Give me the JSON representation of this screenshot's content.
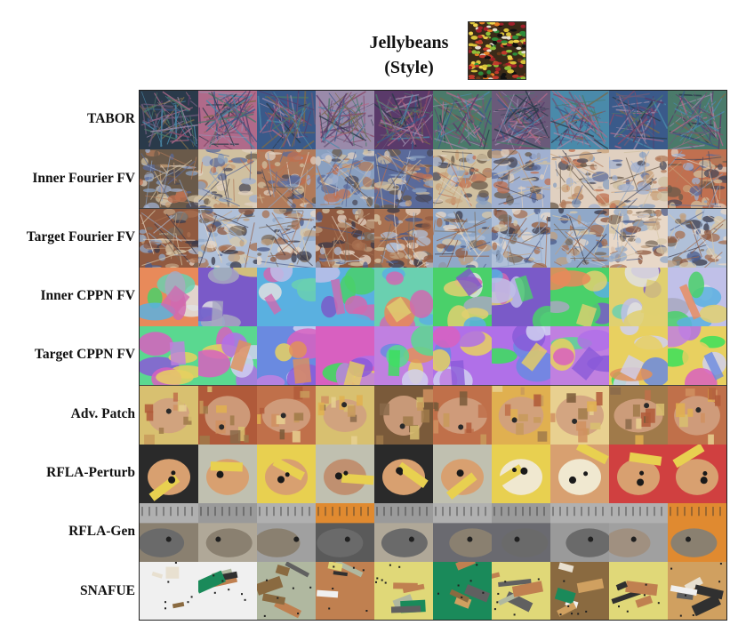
{
  "header": {
    "title_line1": "Jellybeans",
    "title_line2": "(Style)"
  },
  "rows": [
    {
      "label": "TABOR",
      "style": "noise"
    },
    {
      "label": "Inner Fourier FV",
      "style": "fourier"
    },
    {
      "label": "Target Fourier FV",
      "style": "fourier2"
    },
    {
      "label": "Inner CPPN FV",
      "style": "cppn"
    },
    {
      "label": "Target CPPN FV",
      "style": "cppn2"
    },
    {
      "label": "Adv. Patch",
      "style": "patch"
    },
    {
      "label": "RFLA-Perturb",
      "style": "perturb"
    },
    {
      "label": "RFLA-Gen",
      "style": "gen"
    },
    {
      "label": "SNAFUE",
      "style": "natural"
    }
  ],
  "columns": 10
}
